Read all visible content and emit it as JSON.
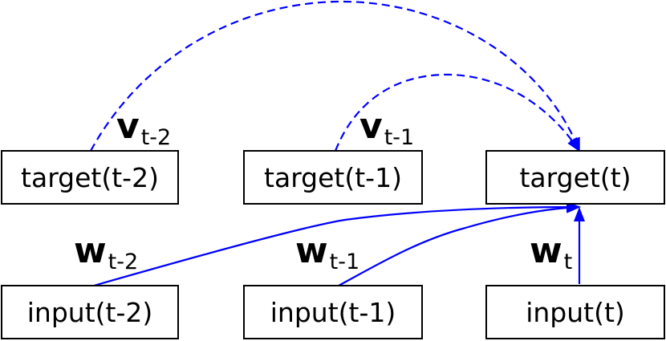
{
  "colors": {
    "edge": "#0000ff",
    "box_border": "#000000",
    "text": "#000000"
  },
  "nodes": {
    "target_t2": "target(t-2)",
    "target_t1": "target(t-1)",
    "target_t": "target(t)",
    "input_t2": "input(t-2)",
    "input_t1": "input(t-1)",
    "input_t": "input(t)"
  },
  "labels": {
    "v_t2": {
      "main": "v",
      "sub": "t-2"
    },
    "v_t1": {
      "main": "v",
      "sub": "t-1"
    },
    "w_t2": {
      "main": "w",
      "sub": "t-2"
    },
    "w_t1": {
      "main": "w",
      "sub": "t-1"
    },
    "w_t": {
      "main": "w",
      "sub": "t"
    }
  },
  "edges": [
    {
      "from": "target_t2",
      "to": "target_t",
      "style": "dashed",
      "label": "v_t2"
    },
    {
      "from": "target_t1",
      "to": "target_t",
      "style": "dashed",
      "label": "v_t1"
    },
    {
      "from": "input_t2",
      "to": "target_t",
      "style": "solid",
      "label": "w_t2"
    },
    {
      "from": "input_t1",
      "to": "target_t",
      "style": "solid",
      "label": "w_t1"
    },
    {
      "from": "input_t",
      "to": "target_t",
      "style": "solid",
      "label": "w_t"
    }
  ]
}
